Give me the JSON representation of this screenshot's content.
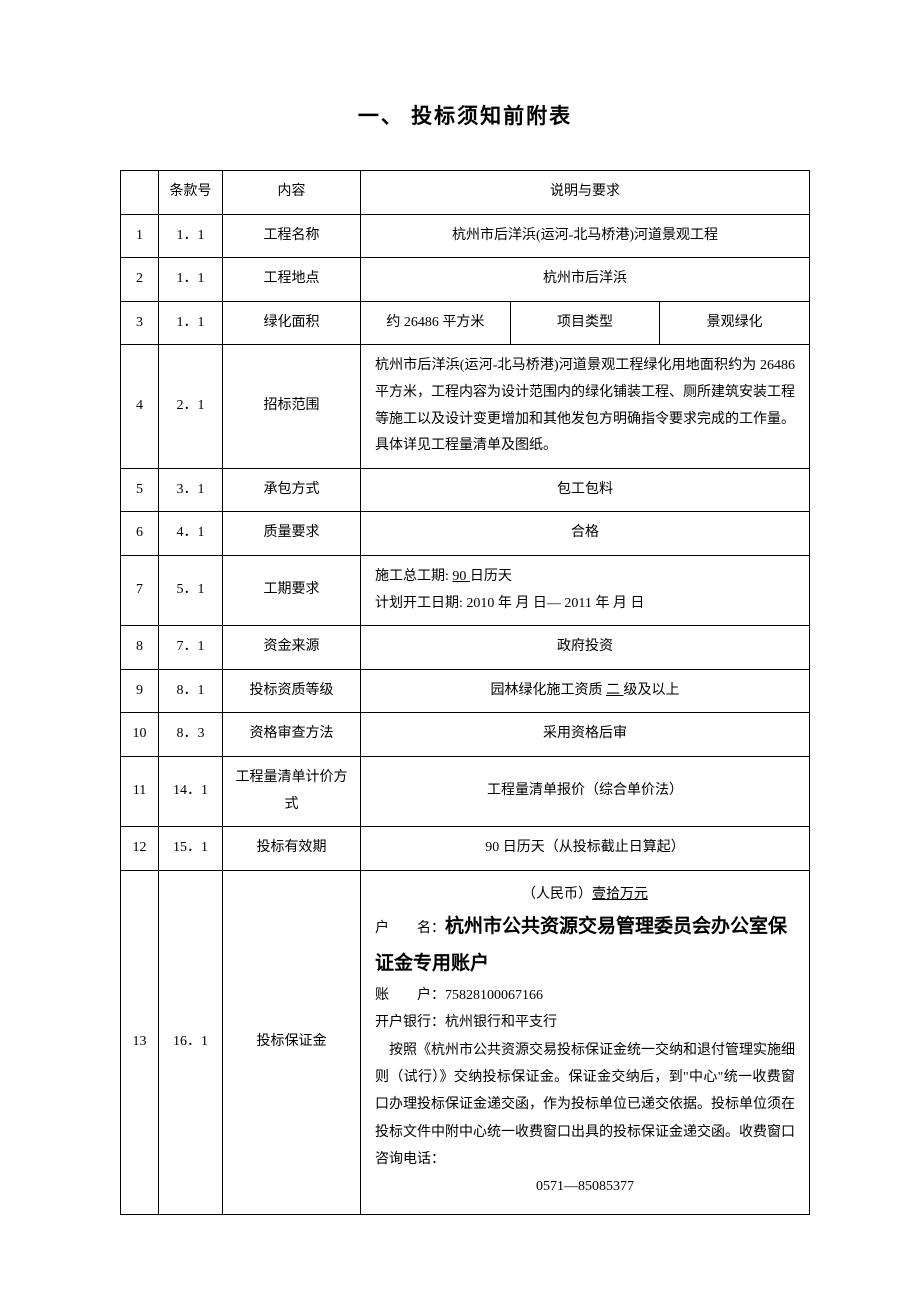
{
  "title": "一、 投标须知前附表",
  "headers": {
    "num": "",
    "clause": "条款号",
    "content": "内容",
    "desc": "说明与要求"
  },
  "rows": [
    {
      "num": "1",
      "clause": "1．1",
      "content": "工程名称",
      "desc": "杭州市后洋浜(运河-北马桥港)河道景观工程"
    },
    {
      "num": "2",
      "clause": "1．1",
      "content": "工程地点",
      "desc": "杭州市后洋浜"
    },
    {
      "num": "3",
      "clause": "1．1",
      "content": "绿化面积",
      "area_prefix": "约   ",
      "area_value": "26486 平方米",
      "sub_label": "项目类型",
      "sub_value": "景观绿化"
    },
    {
      "num": "4",
      "clause": "2．1",
      "content": "招标范围",
      "desc": "杭州市后洋浜(运河-北马桥港)河道景观工程绿化用地面积约为 26486 平方米，工程内容为设计范围内的绿化铺装工程、厕所建筑安装工程等施工以及设计变更增加和其他发包方明确指令要求完成的工作量。具体详见工程量清单及图纸。"
    },
    {
      "num": "5",
      "clause": "3．1",
      "content": "承包方式",
      "desc": "包工包料"
    },
    {
      "num": "6",
      "clause": "4．1",
      "content": "质量要求",
      "desc": "合格"
    },
    {
      "num": "7",
      "clause": "5．1",
      "content": "工期要求",
      "line1_prefix": "施工总工期:  ",
      "line1_underline": "90 ",
      "line1_suffix": "日历天",
      "line2": "计划开工日期: 2010 年  月  日—  2011 年  月  日"
    },
    {
      "num": "8",
      "clause": "7．1",
      "content": "资金来源",
      "desc": "政府投资"
    },
    {
      "num": "9",
      "clause": "8．1",
      "content": "投标资质等级",
      "desc_prefix": "园林绿化施工资质 ",
      "desc_underline": "二 ",
      "desc_suffix": "级及以上"
    },
    {
      "num": "10",
      "clause": "8．3",
      "content": "资格审查方法",
      "desc": "采用资格后审"
    },
    {
      "num": "11",
      "clause": "14．1",
      "content": "工程量清单计价方式",
      "desc": "工程量清单报价（综合单价法）"
    },
    {
      "num": "12",
      "clause": "15．1",
      "content": "投标有效期",
      "desc": "90 日历天（从投标截止日算起）"
    },
    {
      "num": "13",
      "clause": "16．1",
      "content": "投标保证金",
      "deposit_currency_prefix": "（人民币）",
      "deposit_amount": "壹拾万元",
      "account_name_label": "户　　名：",
      "account_name_value": "杭州市公共资源交易管理委员会办公室保证金专用账户",
      "account_no_label": "账　　户：",
      "account_no": "75828100067166",
      "bank_label": "开户银行：",
      "bank_name": "杭州银行和平支行",
      "deposit_body": "　按照《杭州市公共资源交易投标保证金统一交纳和退付管理实施细则（试行）》交纳投标保证金。保证金交纳后，到\"中心\"统一收费窗口办理投标保证金递交函，作为投标单位已递交依据。投标单位须在投标文件中附中心统一收费窗口出具的投标保证金递交函。收费窗口咨询电话：",
      "phone": "0571—85085377"
    }
  ],
  "style": {
    "background": "#ffffff",
    "border_color": "#000000",
    "font_family": "SimSun",
    "body_font_size": 14,
    "title_font_size": 21,
    "account_name_font_size": 19
  }
}
